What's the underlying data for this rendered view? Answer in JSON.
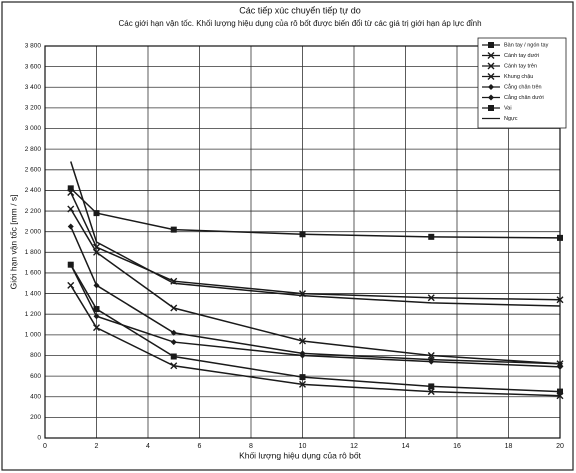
{
  "chart_data": {
    "type": "line",
    "title": "Các tiếp xúc chuyển tiếp tự do",
    "subtitle": "Các giới hạn vận tốc. Khối lượng hiệu dụng của rô bốt được biến đổi từ các giá trị giới hạn áp lực đỉnh",
    "x_label": "Khối lượng hiệu dụng của rô bốt",
    "y_label": "Giới hạn vận tốc [mm / s]",
    "x": [
      1,
      2,
      5,
      10,
      15,
      20
    ],
    "xlim": [
      0,
      20
    ],
    "xticks": [
      0,
      2,
      4,
      6,
      8,
      10,
      12,
      14,
      16,
      18,
      20
    ],
    "ylim": [
      0,
      3800
    ],
    "yticks": [
      0,
      200,
      400,
      600,
      800,
      {
        "value": 1000,
        "label": "1 000"
      },
      {
        "value": 1200,
        "label": "1 200"
      },
      {
        "value": 1400,
        "label": "1 400"
      },
      {
        "value": 1600,
        "label": "1 600"
      },
      {
        "value": 1800,
        "label": "1 800"
      },
      {
        "value": 2000,
        "label": "2 000"
      },
      {
        "value": 2200,
        "label": "2 200"
      },
      {
        "value": 2400,
        "label": "2 400"
      },
      {
        "value": 2600,
        "label": "2 600"
      },
      {
        "value": 2800,
        "label": "2 800"
      },
      {
        "value": 3000,
        "label": "3 000"
      },
      {
        "value": 3200,
        "label": "3 200"
      },
      {
        "value": 3400,
        "label": "3 400"
      },
      {
        "value": 3600,
        "label": "3 600"
      },
      {
        "value": 3800,
        "label": "3 800"
      }
    ],
    "grid": true,
    "legend": "top-right",
    "series": [
      {
        "name": "Bàn tay / ngón tay",
        "color": "#1a1a1a",
        "marker": "square",
        "values": [
          2420,
          2180,
          2020,
          1975,
          1950,
          1940
        ]
      },
      {
        "name": "Cánh tay dưới",
        "color": "#1a1a1a",
        "marker": "x",
        "values": [
          2380,
          1850,
          1520,
          1400,
          1360,
          1340
        ]
      },
      {
        "name": "Cánh tay trên",
        "color": "#1a1a1a",
        "marker": "x",
        "values": [
          2220,
          1800,
          1260,
          940,
          800,
          720
        ]
      },
      {
        "name": "Khung chậu",
        "color": "#1a1a1a",
        "marker": "x",
        "values": [
          1480,
          1070,
          700,
          520,
          450,
          410
        ]
      },
      {
        "name": "Cẳng chân trên",
        "color": "#1a1a1a",
        "marker": "diamond",
        "values": [
          2050,
          1480,
          1020,
          820,
          760,
          720
        ]
      },
      {
        "name": "Cẳng chân dưới",
        "color": "#1a1a1a",
        "marker": "diamond",
        "values": [
          1680,
          1180,
          930,
          800,
          740,
          690
        ]
      },
      {
        "name": "Vai",
        "color": "#1a1a1a",
        "marker": "square",
        "values": [
          1680,
          1250,
          790,
          590,
          500,
          450
        ]
      },
      {
        "name": "Ngực",
        "color": "#1a1a1a",
        "marker": "none",
        "values": [
          2680,
          1900,
          1500,
          1380,
          1310,
          1280
        ]
      }
    ]
  }
}
